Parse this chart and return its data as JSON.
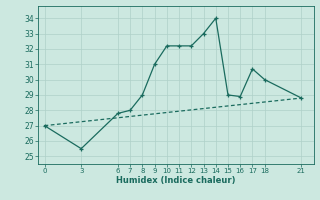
{
  "line1_x": [
    0,
    3,
    6,
    7,
    8,
    9,
    10,
    11,
    12,
    13,
    14,
    15,
    16,
    17,
    18,
    21
  ],
  "line1_y": [
    27.0,
    25.5,
    27.8,
    28.0,
    29.0,
    31.0,
    32.2,
    32.2,
    32.2,
    33.0,
    34.0,
    29.0,
    28.9,
    30.7,
    30.0,
    28.8
  ],
  "line2_x": [
    0,
    21
  ],
  "line2_y": [
    27.0,
    28.8
  ],
  "line_color": "#1a6b5e",
  "bg_color": "#cce8e0",
  "grid_color": "#afd0c8",
  "xlabel": "Humidex (Indice chaleur)",
  "xticks": [
    0,
    3,
    6,
    7,
    8,
    9,
    10,
    11,
    12,
    13,
    14,
    15,
    16,
    17,
    18,
    21
  ],
  "yticks": [
    25,
    26,
    27,
    28,
    29,
    30,
    31,
    32,
    33,
    34
  ],
  "xlim": [
    -0.5,
    22
  ],
  "ylim": [
    24.5,
    34.8
  ]
}
